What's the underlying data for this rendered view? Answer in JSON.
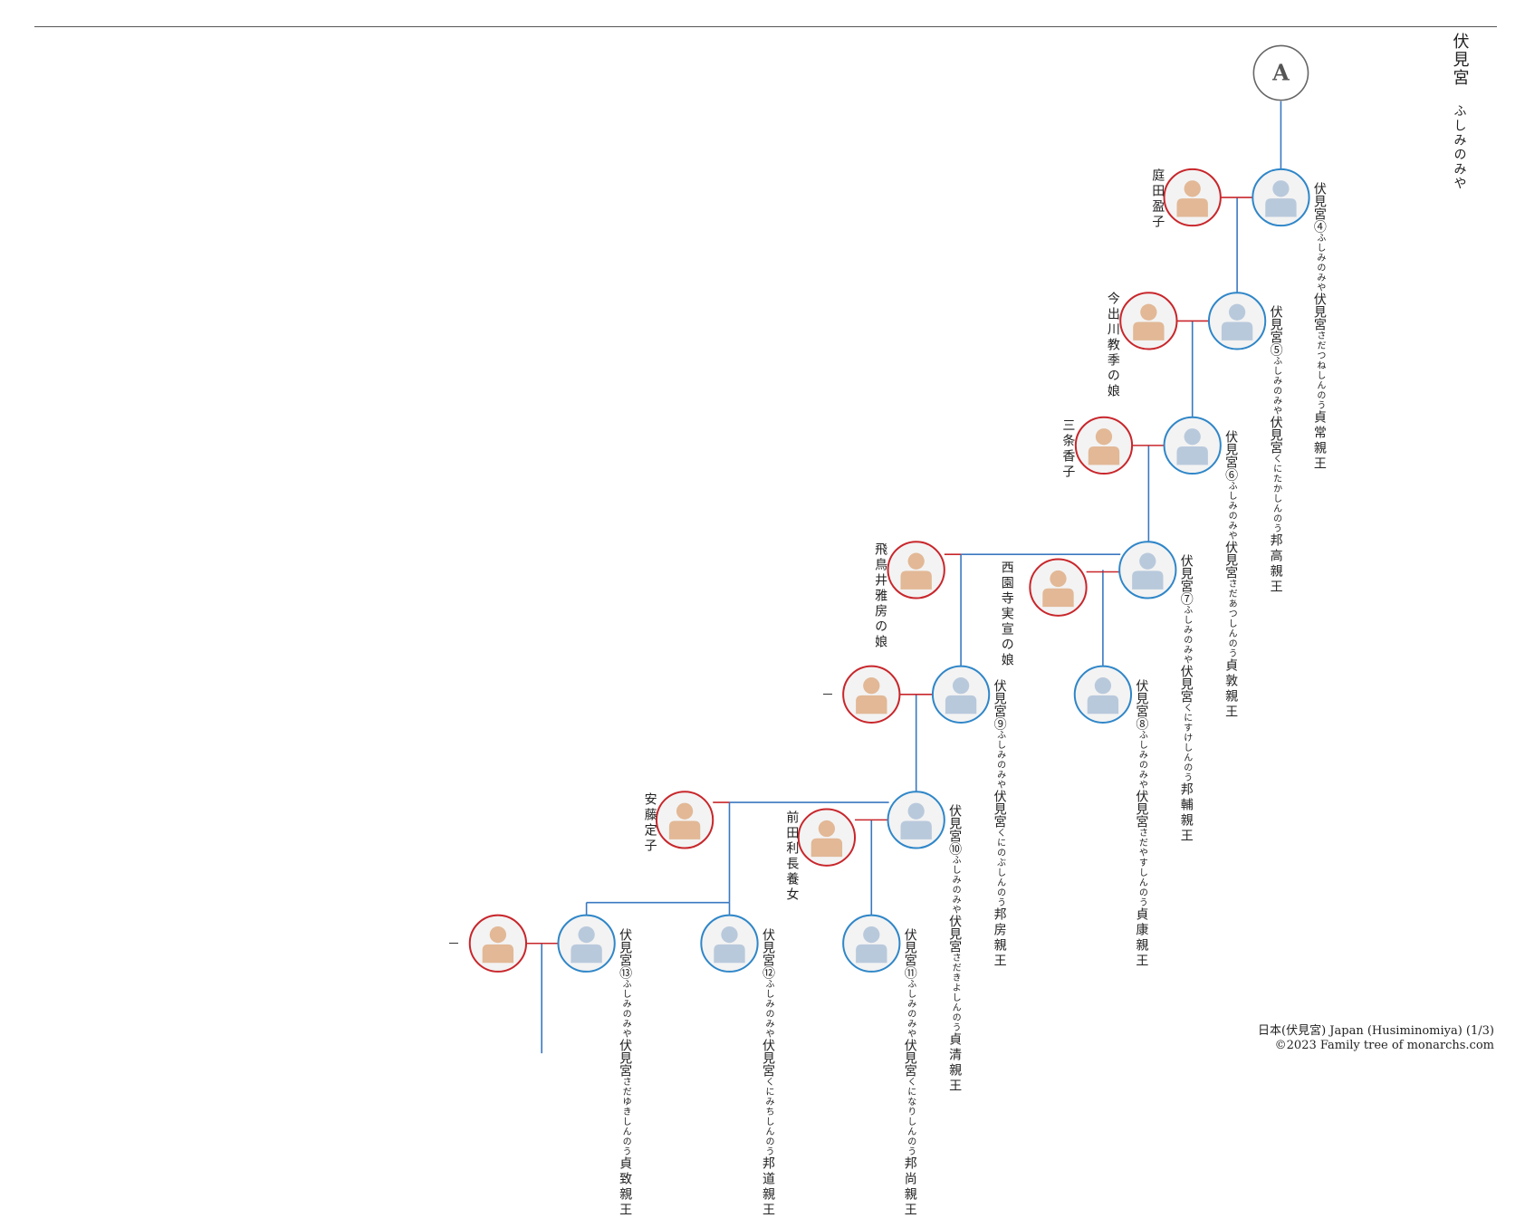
{
  "house": {
    "name": "伏見宮",
    "reading": "ふしみのみや"
  },
  "tree": {
    "start_marker": "A",
    "people": [
      {
        "id": "p4",
        "title": "伏見宮④",
        "house_reading": "ふしみのみや",
        "house": "伏見宮",
        "name_reading": "さだつねしんのう",
        "name": "貞常親王"
      },
      {
        "id": "p5",
        "title": "伏見宮⑤",
        "house_reading": "ふしみのみや",
        "house": "伏見宮",
        "name_reading": "くにたかしんのう",
        "name": "邦高親王"
      },
      {
        "id": "p6",
        "title": "伏見宮⑥",
        "house_reading": "ふしみのみや",
        "house": "伏見宮",
        "name_reading": "さだあつしんのう",
        "name": "貞敦親王"
      },
      {
        "id": "p7",
        "title": "伏見宮⑦",
        "house_reading": "ふしみのみや",
        "house": "伏見宮",
        "name_reading": "くにすけしんのう",
        "name": "邦輔親王"
      },
      {
        "id": "p8",
        "title": "伏見宮⑧",
        "house_reading": "ふしみのみや",
        "house": "伏見宮",
        "name_reading": "さだやすしんのう",
        "name": "貞康親王"
      },
      {
        "id": "p9",
        "title": "伏見宮⑨",
        "house_reading": "ふしみのみや",
        "house": "伏見宮",
        "name_reading": "くにのぶしんのう",
        "name": "邦房親王"
      },
      {
        "id": "p10",
        "title": "伏見宮⑩",
        "house_reading": "ふしみのみや",
        "house": "伏見宮",
        "name_reading": "さだきよしんのう",
        "name": "貞清親王"
      },
      {
        "id": "p11",
        "title": "伏見宮⑪",
        "house_reading": "ふしみのみや",
        "house": "伏見宮",
        "name_reading": "くになりしんのう",
        "name": "邦尚親王"
      },
      {
        "id": "p12",
        "title": "伏見宮⑫",
        "house_reading": "ふしみのみや",
        "house": "伏見宮",
        "name_reading": "くにみちしんのう",
        "name": "邦道親王"
      },
      {
        "id": "p13",
        "title": "伏見宮⑬",
        "house_reading": "ふしみのみや",
        "house": "伏見宮",
        "name_reading": "さだゆきしんのう",
        "name": "貞致親王"
      }
    ],
    "spouses": [
      {
        "id": "s4",
        "name": "庭田盈子"
      },
      {
        "id": "s5",
        "name": "今出川教季の娘"
      },
      {
        "id": "s6",
        "name": "三条香子"
      },
      {
        "id": "s7a",
        "name": "飛鳥井雅房の娘"
      },
      {
        "id": "s7b",
        "name": "西園寺実宣の娘"
      },
      {
        "id": "s9",
        "name": "—"
      },
      {
        "id": "s10a",
        "name": "安藤定子"
      },
      {
        "id": "s10b",
        "name": "前田利長養女"
      },
      {
        "id": "s13",
        "name": "—"
      }
    ]
  },
  "colors": {
    "male_ring": "#2f86c8",
    "female_ring": "#c8262b",
    "line_descent": "#3a78c0",
    "line_marriage": "#c8262b",
    "male_figure": "#b9c9dc",
    "female_figure": "#e2b896",
    "avatar_bg": "#f3f3f3"
  },
  "footer": {
    "line1": "日本(伏見宮) Japan (Husiminomiya) (1/3)",
    "line2": "©2023 Family tree of monarchs.com"
  }
}
